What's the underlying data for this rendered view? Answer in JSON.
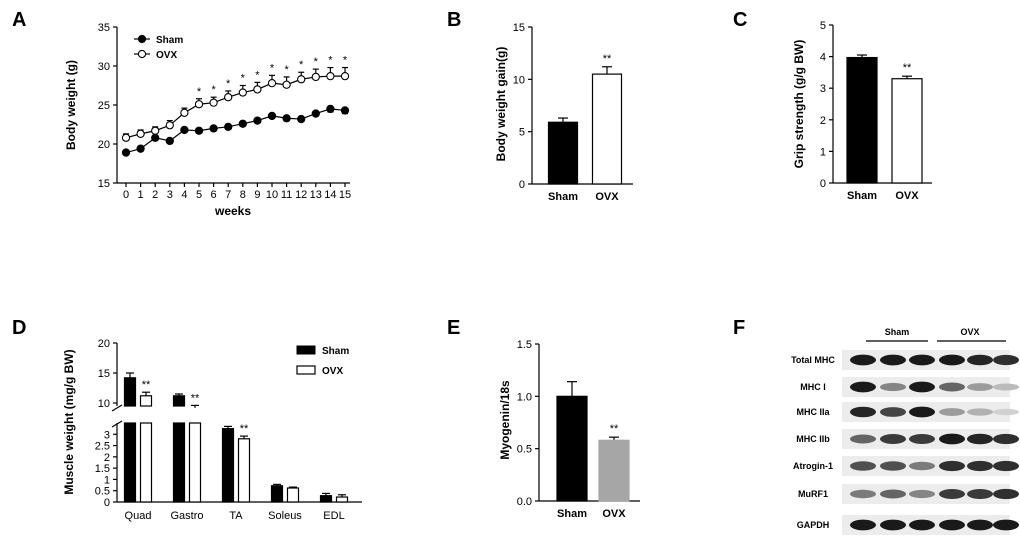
{
  "panels": {
    "A": "A",
    "B": "B",
    "C": "C",
    "D": "D",
    "E": "E",
    "F": "F"
  },
  "colors": {
    "sham": "#000000",
    "ovx_open": "#ffffff",
    "ovx_gray": "#a6a6a6"
  },
  "chart_data": [
    {
      "id": "A",
      "type": "line",
      "xlabel": "weeks",
      "ylabel": "Body weight (g)",
      "ylim": [
        15,
        35
      ],
      "yticks": [
        15,
        20,
        25,
        30,
        35
      ],
      "x": [
        0,
        1,
        2,
        3,
        4,
        5,
        6,
        7,
        8,
        9,
        10,
        11,
        12,
        13,
        14,
        15
      ],
      "legend": [
        "Sham",
        "OVX"
      ],
      "series": [
        {
          "name": "Sham",
          "marker": "filled-circle",
          "values": [
            18.9,
            19.4,
            20.8,
            20.4,
            21.8,
            21.7,
            22.0,
            22.2,
            22.6,
            23.0,
            23.6,
            23.3,
            23.2,
            23.9,
            24.5,
            24.3
          ],
          "errors": [
            0.3,
            0.3,
            0.3,
            0.3,
            0.3,
            0.3,
            0.3,
            0.3,
            0.3,
            0.3,
            0.3,
            0.3,
            0.3,
            0.3,
            0.4,
            0.4
          ]
        },
        {
          "name": "OVX",
          "marker": "open-circle",
          "values": [
            20.8,
            21.3,
            21.7,
            22.4,
            24.0,
            25.1,
            25.3,
            26.0,
            26.6,
            27.0,
            27.8,
            27.6,
            28.3,
            28.6,
            28.7,
            28.7
          ],
          "errors": [
            0.5,
            0.5,
            0.5,
            0.6,
            0.6,
            0.7,
            0.7,
            0.8,
            0.9,
            0.9,
            1.0,
            1.0,
            0.9,
            1.0,
            1.1,
            1.1
          ]
        }
      ],
      "annotations": {
        "mark": "*",
        "weeks": [
          5,
          6,
          7,
          8,
          9,
          10,
          11,
          12,
          13,
          14,
          15
        ]
      }
    },
    {
      "id": "B",
      "type": "bar",
      "ylabel": "Body weight gain(g)",
      "ylim": [
        0,
        15
      ],
      "yticks": [
        0,
        5,
        10,
        15
      ],
      "categories": [
        "Sham",
        "OVX"
      ],
      "values": [
        5.9,
        10.5
      ],
      "errors": [
        0.4,
        0.7
      ],
      "fills": [
        "black",
        "white"
      ],
      "annotations": [
        "",
        "**"
      ]
    },
    {
      "id": "C",
      "type": "bar",
      "ylabel": "Grip strength (g/g BW)",
      "ylim": [
        0,
        5
      ],
      "yticks": [
        0,
        1,
        2,
        3,
        4,
        5
      ],
      "categories": [
        "Sham",
        "OVX"
      ],
      "values": [
        3.97,
        3.3
      ],
      "errors": [
        0.08,
        0.08
      ],
      "fills": [
        "black",
        "white"
      ],
      "annotations": [
        "",
        "**"
      ]
    },
    {
      "id": "D",
      "type": "bar",
      "ylabel": "Muscle weight (mg/g BW)",
      "yticks_lower": [
        0,
        0.5,
        1,
        1.5,
        2,
        2.5,
        3
      ],
      "yticks_upper": [
        10,
        15,
        20
      ],
      "axis_break": [
        3.5,
        9.5
      ],
      "categories": [
        "Quad",
        "Gastro",
        "TA",
        "Soleus",
        "EDL"
      ],
      "legend": [
        "Sham",
        "OVX"
      ],
      "series": [
        {
          "name": "Sham",
          "values": [
            14.2,
            11.2,
            3.25,
            0.72,
            0.28
          ],
          "errors": [
            0.8,
            0.3,
            0.1,
            0.06,
            0.1
          ]
        },
        {
          "name": "OVX",
          "values": [
            11.2,
            9.2,
            2.8,
            0.62,
            0.22
          ],
          "errors": [
            0.6,
            0.4,
            0.12,
            0.04,
            0.1
          ]
        }
      ],
      "annotations": [
        "**",
        "**",
        "**",
        "",
        ""
      ]
    },
    {
      "id": "E",
      "type": "bar",
      "ylabel": "Myogenin/18s",
      "ylim": [
        0,
        1.5
      ],
      "yticks": [
        "0.0",
        "0.5",
        "1.0",
        "1.5"
      ],
      "categories": [
        "Sham",
        "OVX"
      ],
      "values": [
        1.0,
        0.58
      ],
      "errors": [
        0.14,
        0.03
      ],
      "fills": [
        "black",
        "gray"
      ],
      "annotations": [
        "",
        "**"
      ]
    },
    {
      "id": "F",
      "type": "table",
      "groups": [
        "Sham",
        "OVX"
      ],
      "rows": [
        "Total MHC",
        "MHC I",
        "MHC IIa",
        "MHC IIb",
        "Atrogin-1",
        "MuRF1",
        "GAPDH"
      ],
      "band_intensity": [
        [
          0.95,
          0.95,
          0.95,
          0.95,
          0.9,
          0.85
        ],
        [
          0.95,
          0.45,
          0.95,
          0.6,
          0.35,
          0.2
        ],
        [
          0.9,
          0.75,
          0.95,
          0.35,
          0.25,
          0.1
        ],
        [
          0.6,
          0.8,
          0.8,
          0.95,
          0.9,
          0.85
        ],
        [
          0.7,
          0.7,
          0.5,
          0.85,
          0.85,
          0.85
        ],
        [
          0.5,
          0.6,
          0.45,
          0.8,
          0.8,
          0.85
        ],
        [
          0.95,
          0.95,
          0.95,
          0.95,
          0.95,
          0.95
        ]
      ]
    }
  ]
}
